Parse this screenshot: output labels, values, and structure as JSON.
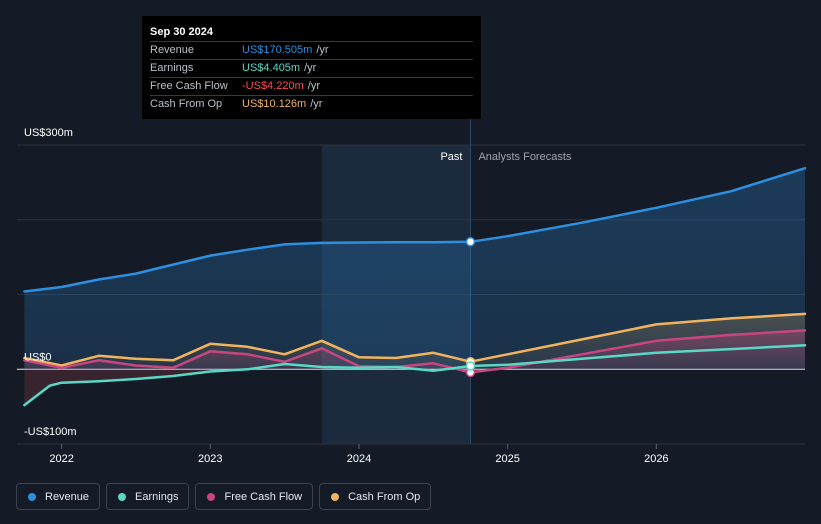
{
  "tooltip": {
    "date": "Sep 30 2024",
    "rows": [
      {
        "name": "Revenue",
        "value": "US$170.505m",
        "unit": "/yr",
        "color": "#2d8fe0"
      },
      {
        "name": "Earnings",
        "value": "US$4.405m",
        "unit": "/yr",
        "color": "#5ad8c6"
      },
      {
        "name": "Free Cash Flow",
        "value": "-US$4.220m",
        "unit": "/yr",
        "color": "#ff4d4d"
      },
      {
        "name": "Cash From Op",
        "value": "US$10.126m",
        "unit": "/yr",
        "color": "#f2b35e"
      }
    ]
  },
  "legend": [
    {
      "label": "Revenue",
      "color": "#2d8fe0"
    },
    {
      "label": "Earnings",
      "color": "#5ad8c6"
    },
    {
      "label": "Free Cash Flow",
      "color": "#c8467f"
    },
    {
      "label": "Cash From Op",
      "color": "#f2b35e"
    }
  ],
  "chart_data": {
    "type": "line",
    "y_axis_labels": [
      "US$300m",
      "US$0",
      "-US$100m"
    ],
    "x_tick_labels": [
      "2022",
      "2023",
      "2024",
      "2025",
      "2026"
    ],
    "x_ticks": [
      2022.0,
      2023.0,
      2024.0,
      2025.0,
      2026.0
    ],
    "ylim": [
      -100,
      300
    ],
    "xlim": [
      2021.7,
      2027.0
    ],
    "past_label": "Past",
    "forecast_label": "Analysts Forecasts",
    "divider_x": 2024.75,
    "highlight_start_x": 2023.75,
    "grid": true,
    "series": [
      {
        "name": "Revenue",
        "color": "#2d8fe0",
        "fill": true,
        "points": [
          [
            2021.75,
            104
          ],
          [
            2022.0,
            110
          ],
          [
            2022.25,
            120
          ],
          [
            2022.5,
            128
          ],
          [
            2022.75,
            140
          ],
          [
            2023.0,
            152
          ],
          [
            2023.25,
            160
          ],
          [
            2023.5,
            167
          ],
          [
            2023.75,
            169
          ],
          [
            2024.0,
            169.5
          ],
          [
            2024.25,
            170
          ],
          [
            2024.5,
            170
          ],
          [
            2024.75,
            170.5
          ],
          [
            2025.0,
            178
          ],
          [
            2025.5,
            196
          ],
          [
            2026.0,
            216
          ],
          [
            2026.5,
            238
          ],
          [
            2027.0,
            269
          ]
        ]
      },
      {
        "name": "Earnings",
        "color": "#5ad8c6",
        "fill": false,
        "points": [
          [
            2021.75,
            -48
          ],
          [
            2021.92,
            -22
          ],
          [
            2022.0,
            -18
          ],
          [
            2022.25,
            -16
          ],
          [
            2022.5,
            -13
          ],
          [
            2022.75,
            -9
          ],
          [
            2023.0,
            -3
          ],
          [
            2023.25,
            0
          ],
          [
            2023.5,
            7
          ],
          [
            2023.75,
            3
          ],
          [
            2024.0,
            2
          ],
          [
            2024.25,
            3
          ],
          [
            2024.5,
            -2
          ],
          [
            2024.75,
            4.4
          ],
          [
            2025.0,
            6
          ],
          [
            2025.5,
            14
          ],
          [
            2026.0,
            22
          ],
          [
            2026.5,
            27
          ],
          [
            2027.0,
            32
          ]
        ]
      },
      {
        "name": "Free Cash Flow",
        "color": "#c8467f",
        "fill": true,
        "points": [
          [
            2021.75,
            12
          ],
          [
            2022.0,
            2
          ],
          [
            2022.25,
            12
          ],
          [
            2022.5,
            5
          ],
          [
            2022.75,
            2
          ],
          [
            2023.0,
            24
          ],
          [
            2023.25,
            20
          ],
          [
            2023.5,
            10
          ],
          [
            2023.75,
            28
          ],
          [
            2024.0,
            4
          ],
          [
            2024.25,
            3
          ],
          [
            2024.5,
            8
          ],
          [
            2024.75,
            -4.2
          ],
          [
            2025.0,
            2
          ],
          [
            2025.5,
            20
          ],
          [
            2026.0,
            38
          ],
          [
            2026.5,
            46
          ],
          [
            2027.0,
            52
          ]
        ]
      },
      {
        "name": "Cash From Op",
        "color": "#f2b35e",
        "fill": true,
        "points": [
          [
            2021.75,
            15
          ],
          [
            2022.0,
            5
          ],
          [
            2022.25,
            18
          ],
          [
            2022.5,
            14
          ],
          [
            2022.75,
            12
          ],
          [
            2023.0,
            34
          ],
          [
            2023.25,
            30
          ],
          [
            2023.5,
            20
          ],
          [
            2023.75,
            38
          ],
          [
            2024.0,
            16
          ],
          [
            2024.25,
            15
          ],
          [
            2024.5,
            22
          ],
          [
            2024.75,
            10.1
          ],
          [
            2025.0,
            20
          ],
          [
            2025.5,
            40
          ],
          [
            2026.0,
            60
          ],
          [
            2026.5,
            68
          ],
          [
            2027.0,
            74
          ]
        ]
      }
    ]
  }
}
